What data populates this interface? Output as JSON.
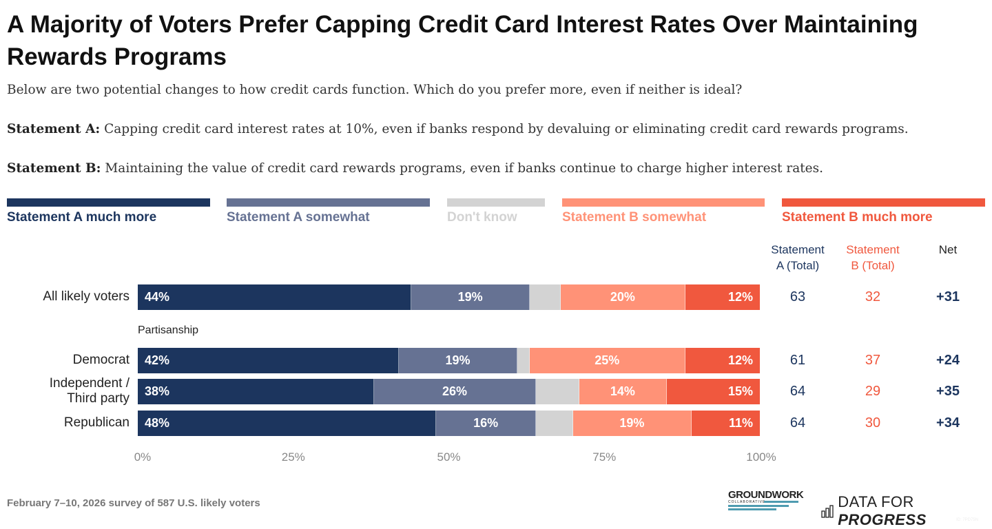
{
  "title": "A Majority of Voters Prefer Capping Credit Card Interest Rates Over Maintaining Rewards Programs",
  "question": "Below are two potential changes to how credit cards function. Which do you prefer more, even if neither is ideal?",
  "statement_a": {
    "label": "Statement A:",
    "text": " Capping credit card interest rates at 10%, even if banks respond by devaluing or eliminating credit card rewards programs."
  },
  "statement_b": {
    "label": "Statement B:",
    "text": " Maintaining the value of credit card rewards programs, even if banks continue to charge higher interest rates."
  },
  "footer": "February 7–10, 2026 survey of 587 U.S. likely voters",
  "logos": {
    "groundwork": "GROUNDWORK",
    "groundwork_sub": "COLLABORATIVE",
    "dfp_a": "DATA FOR ",
    "dfp_b": "PROGRESS",
    "id": "ID: 7PD75N"
  },
  "chart_data": {
    "type": "stacked-bar-horizontal",
    "title": "A Majority of Voters Prefer Capping Credit Card Interest Rates Over Maintaining Rewards Programs",
    "legend_placement": "top",
    "series": [
      {
        "name": "Statement A much more",
        "color": "#1c355e"
      },
      {
        "name": "Statement A somewhat",
        "color": "#667293"
      },
      {
        "name": "Don't know",
        "color": "#d3d3d3"
      },
      {
        "name": "Statement B somewhat",
        "color": "#ff9277"
      },
      {
        "name": "Statement B much more",
        "color": "#f0583e"
      }
    ],
    "section_label": "Partisanship",
    "columns": [
      "Statement A (Total)",
      "Statement B (Total)",
      "Net"
    ],
    "column_header_lines": [
      [
        "Statement",
        "A (Total)"
      ],
      [
        "Statement",
        "B (Total)"
      ],
      [
        "Net"
      ]
    ],
    "rows": [
      {
        "label": [
          "All likely voters"
        ],
        "values": [
          44,
          19,
          5,
          20,
          12
        ],
        "labels": [
          "44%",
          "19%",
          "",
          "20%",
          "12%"
        ],
        "a_total": "63",
        "b_total": "32",
        "net": "+31"
      },
      {
        "label": [
          "Democrat"
        ],
        "values": [
          42,
          19,
          2,
          25,
          12
        ],
        "labels": [
          "42%",
          "19%",
          "",
          "25%",
          "12%"
        ],
        "a_total": "61",
        "b_total": "37",
        "net": "+24"
      },
      {
        "label": [
          "Independent /",
          "Third party"
        ],
        "values": [
          38,
          26,
          7,
          14,
          15
        ],
        "labels": [
          "38%",
          "26%",
          "",
          "14%",
          "15%"
        ],
        "a_total": "64",
        "b_total": "29",
        "net": "+35"
      },
      {
        "label": [
          "Republican"
        ],
        "values": [
          48,
          16,
          6,
          19,
          11
        ],
        "labels": [
          "48%",
          "16%",
          "",
          "19%",
          "11%"
        ],
        "a_total": "64",
        "b_total": "30",
        "net": "+34"
      }
    ],
    "xticks": [
      "0%",
      "25%",
      "50%",
      "75%",
      "100%"
    ],
    "xlim": [
      0,
      100
    ]
  }
}
